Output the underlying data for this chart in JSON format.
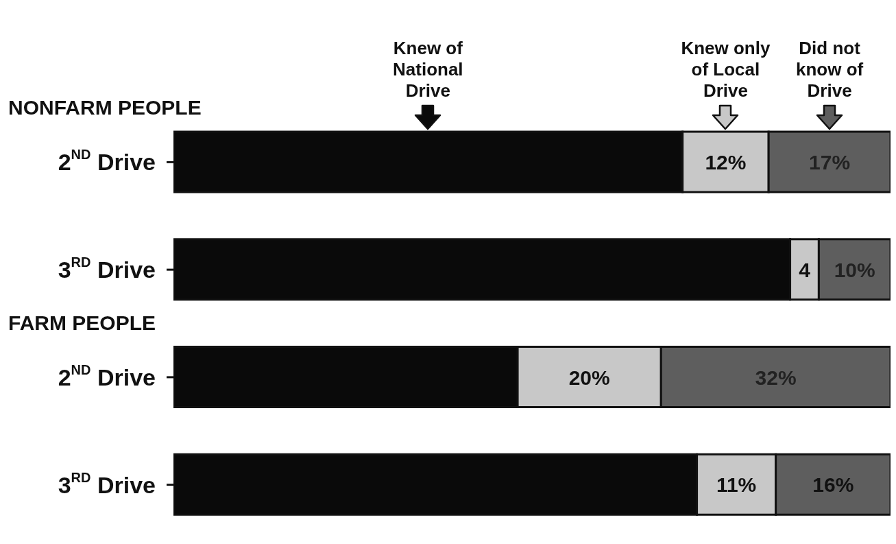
{
  "chart_data": {
    "type": "bar",
    "orientation": "horizontal",
    "stacked": true,
    "legend": "top",
    "categories": [
      "2$^{ND}$ Drive",
      "3$^{RD}$ Drive",
      "2$^{ND}$ Drive",
      "3$^{RD}$ Drive"
    ],
    "annotations": [
      "NONFARM PEOPLE",
      "FARM PEOPLE"
    ],
    "series": [
      {
        "name": "Knew of National Drive",
        "color": "#0a0a0a",
        "values": [
          71,
          86,
          48,
          73
        ]
      },
      {
        "name": "Knew only of Local Drive",
        "color": "#c8c8c8",
        "values": [
          12,
          4,
          20,
          11
        ],
        "value_labels": [
          "12%",
          "4",
          "20%",
          "11%"
        ]
      },
      {
        "name": "Did not know of Drive",
        "color": "#5e5e5e",
        "values": [
          17,
          10,
          32,
          16
        ],
        "value_labels": [
          "17%",
          "10%",
          "32%",
          "16%"
        ]
      }
    ]
  }
}
